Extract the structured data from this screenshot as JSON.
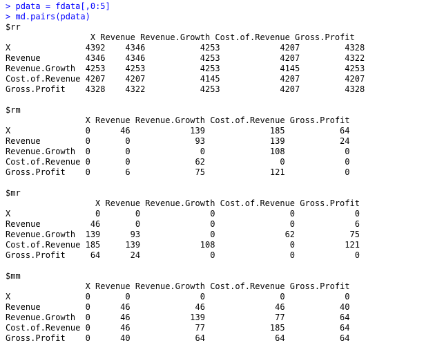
{
  "commands": [
    {
      "prompt": ">",
      "text": "pdata = fdata[,0:5]"
    },
    {
      "prompt": ">",
      "text": "md.pairs(pdata)"
    }
  ],
  "blocks": [
    {
      "name": "$rr",
      "header": "                 X Revenue Revenue.Growth Cost.of.Revenue Gross.Profit",
      "rows": [
        "X               4392    4346           4253            4207         4328",
        "Revenue         4346    4346           4253            4207         4322",
        "Revenue.Growth  4253    4253           4253            4145         4253",
        "Cost.of.Revenue 4207    4207           4145            4207         4207",
        "Gross.Profit    4328    4322           4253            4207         4328"
      ]
    },
    {
      "name": "$rm",
      "header": "                X Revenue Revenue.Growth Cost.of.Revenue Gross.Profit",
      "rows": [
        "X               0      46            139             185           64",
        "Revenue         0       0             93             139           24",
        "Revenue.Growth  0       0              0             108            0",
        "Cost.of.Revenue 0       0             62               0            0",
        "Gross.Profit    0       6             75             121            0"
      ]
    },
    {
      "name": "$mr",
      "header": "                  X Revenue Revenue.Growth Cost.of.Revenue Gross.Profit",
      "rows": [
        "X                 0       0              0               0            0",
        "Revenue          46       0              0               0            6",
        "Revenue.Growth  139      93              0              62           75",
        "Cost.of.Revenue 185     139            108               0          121",
        "Gross.Profit     64      24              0               0            0"
      ]
    },
    {
      "name": "$mm",
      "header": "                X Revenue Revenue.Growth Cost.of.Revenue Gross.Profit",
      "rows": [
        "X               0       0              0               0            0",
        "Revenue         0      46             46              46           40",
        "Revenue.Growth  0      46            139              77           64",
        "Cost.of.Revenue 0      46             77             185           64",
        "Gross.Profit    0      40             64              64           64"
      ]
    }
  ]
}
